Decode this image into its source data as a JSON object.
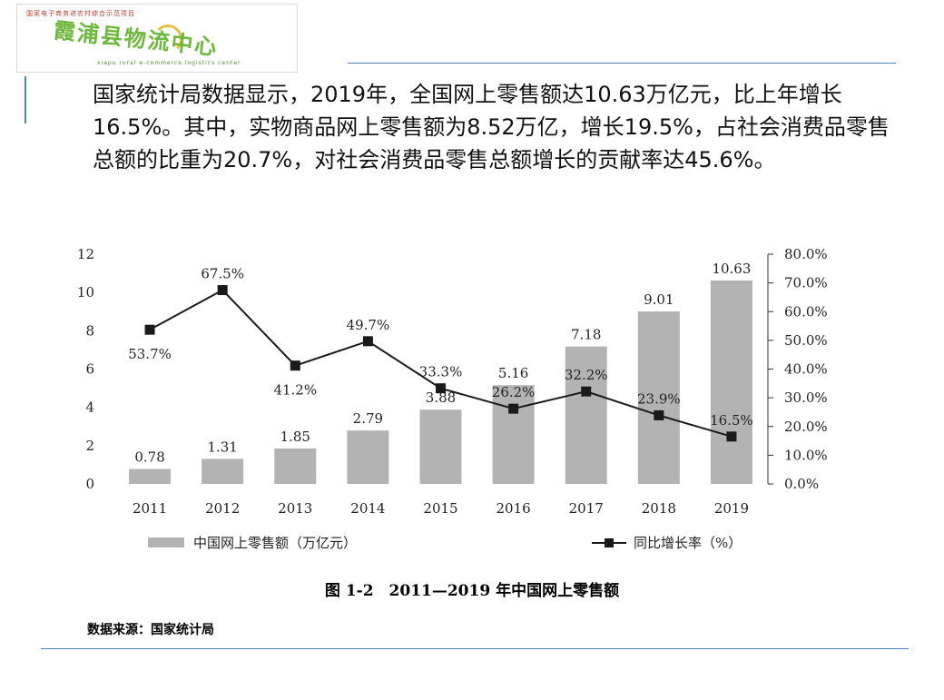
{
  "logo": {
    "text": "霞浦县物流中心",
    "top_line": "国家电子商务进农村综合示范项目",
    "bottom_line": "xiapu rural e-commerce logistics center"
  },
  "intro_text": "国家统计局数据显示，2019年，全国网上零售额达10.63万亿元，比上年增长16.5%。其中，实物商品网上零售额为8.52万亿，增长19.5%，占社会消费品零售总额的比重为20.7%，对社会消费品零售总额增长的贡献率达45.6%。",
  "figure_title": "图 1-2　2011—2019 年中国网上零售额",
  "source": "数据来源：国家统计局",
  "colors": {
    "bar": "#b3b3b3",
    "line": "#1a1a1a",
    "rule": "#4f81bd"
  },
  "chart_data": {
    "type": "bar+line",
    "categories": [
      "2011",
      "2012",
      "2013",
      "2014",
      "2015",
      "2016",
      "2017",
      "2018",
      "2019"
    ],
    "series": [
      {
        "name": "中国网上零售额（万亿元）",
        "type": "bar",
        "axis": "left",
        "values": [
          0.78,
          1.31,
          1.85,
          2.79,
          3.88,
          5.16,
          7.18,
          9.01,
          10.63
        ],
        "labels": [
          "0.78",
          "1.31",
          "1.85",
          "2.79",
          "3.88",
          "5.16",
          "7.18",
          "9.01",
          "10.63"
        ]
      },
      {
        "name": "同比增长率（%）",
        "type": "line",
        "axis": "right",
        "values": [
          53.7,
          67.5,
          41.2,
          49.7,
          33.3,
          26.2,
          32.2,
          23.9,
          16.5
        ],
        "labels": [
          "53.7%",
          "67.5%",
          "41.2%",
          "49.7%",
          "33.3%",
          "26.2%",
          "32.2%",
          "23.9%",
          "16.5%"
        ]
      }
    ],
    "y_left": {
      "range": [
        0,
        12
      ],
      "ticks": [
        "0",
        "2",
        "4",
        "6",
        "8",
        "10",
        "12"
      ]
    },
    "y_right": {
      "range": [
        0,
        80
      ],
      "ticks": [
        "0.0%",
        "10.0%",
        "20.0%",
        "30.0%",
        "40.0%",
        "50.0%",
        "60.0%",
        "70.0%",
        "80.0%"
      ]
    },
    "grid": false,
    "legend_position": "bottom"
  }
}
